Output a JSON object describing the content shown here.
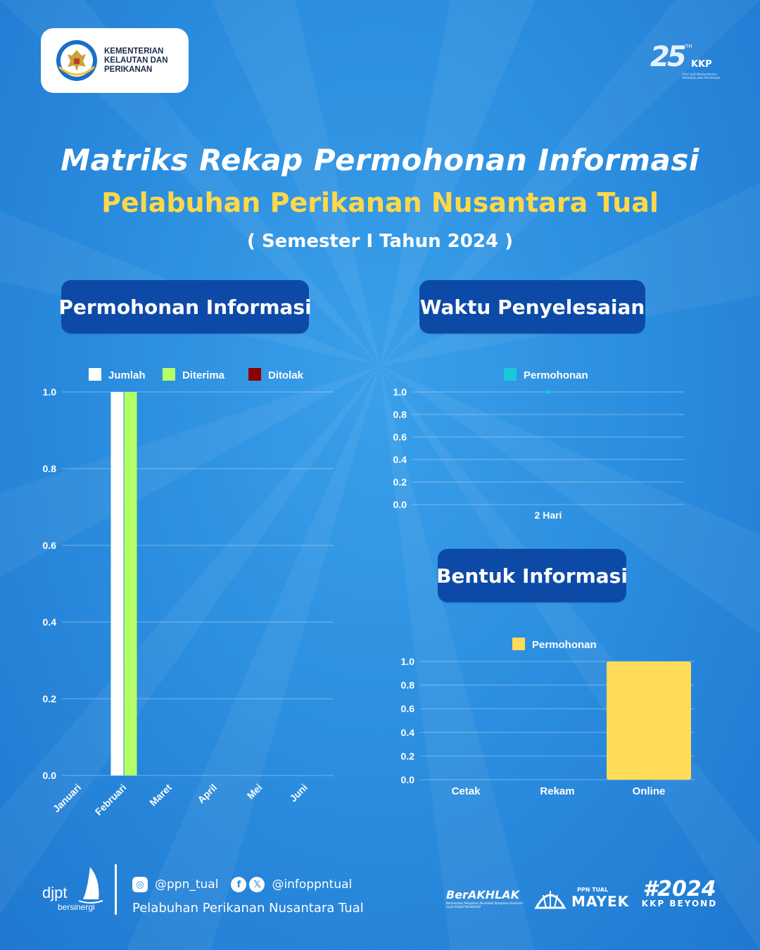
{
  "header": {
    "ministry_name": "KEMENTERIAN KELAUTAN DAN PERIKANAN",
    "anniversary_number": "25",
    "anniversary_suffix": "TH",
    "anniversary_brand": "KKP",
    "anniversary_tagline": "Hari Jadi Kementerian Kelautan dan Perikanan"
  },
  "title": {
    "line1": "Matriks Rekap Permohonan Informasi",
    "line2": "Pelabuhan Perikanan Nusantara Tual",
    "line3": "( Semester I Tahun 2024 )"
  },
  "sections": {
    "permohonan": "Permohonan Informasi",
    "waktu": "Waktu Penyelesaian",
    "bentuk": "Bentuk Informasi"
  },
  "colors": {
    "jumlah": "#ffffff",
    "diterima": "#b2ff66",
    "ditolak": "#8b0000",
    "permohonan_line": "#1bc8d8",
    "permohonan_bar": "#ffdb57",
    "title_yellow": "#ffd84a",
    "pill_bg": "#0d4aa8"
  },
  "chart_data": [
    {
      "type": "bar",
      "categories": [
        "Januari",
        "Februari",
        "Maret",
        "April",
        "Mei",
        "Juni"
      ],
      "series": [
        {
          "name": "Jumlah",
          "values": [
            0,
            1,
            0,
            0,
            0,
            0
          ]
        },
        {
          "name": "Diterima",
          "values": [
            0,
            1,
            0,
            0,
            0,
            0
          ]
        },
        {
          "name": "Ditolak",
          "values": [
            0,
            0,
            0,
            0,
            0,
            0
          ]
        }
      ],
      "ylim": [
        0,
        1
      ],
      "yticks": [
        "0.0",
        "0.2",
        "0.4",
        "0.6",
        "0.8",
        "1.0"
      ],
      "grid": true,
      "legend": "top"
    },
    {
      "type": "line",
      "categories": [
        "2 Hari"
      ],
      "series": [
        {
          "name": "Permohonan",
          "values": [
            1
          ]
        }
      ],
      "ylim": [
        0,
        1
      ],
      "yticks": [
        "0.0",
        "0.2",
        "0.4",
        "0.6",
        "0.8",
        "1.0"
      ],
      "grid": true,
      "legend": "top"
    },
    {
      "type": "bar",
      "categories": [
        "Cetak",
        "Rekam",
        "Online"
      ],
      "series": [
        {
          "name": "Permohonan",
          "values": [
            0,
            0,
            1
          ]
        }
      ],
      "ylim": [
        0,
        1
      ],
      "yticks": [
        "0.0",
        "0.2",
        "0.4",
        "0.6",
        "0.8",
        "1.0"
      ],
      "grid": true,
      "legend": "top"
    }
  ],
  "footer": {
    "djpt": "djpt",
    "bersinergi": "bersinergi",
    "instagram": "@ppn_tual",
    "facebook_x": "@infoppntual",
    "port_name": "Pelabuhan Perikanan Nusantara Tual",
    "berakhlak": "BerAKHLAK",
    "berakhlak_sub": "Berorientasi Pelayanan Akuntabel Kompeten Harmonis Loyal Adaptif Kolaboratif",
    "mayek_top": "PPN TUAL",
    "mayek": "MAYEK",
    "hashtag": "#2024",
    "kkp_beyond": "KKP BEYOND",
    "icons": [
      "instagram-icon",
      "facebook-icon",
      "x-icon"
    ]
  }
}
